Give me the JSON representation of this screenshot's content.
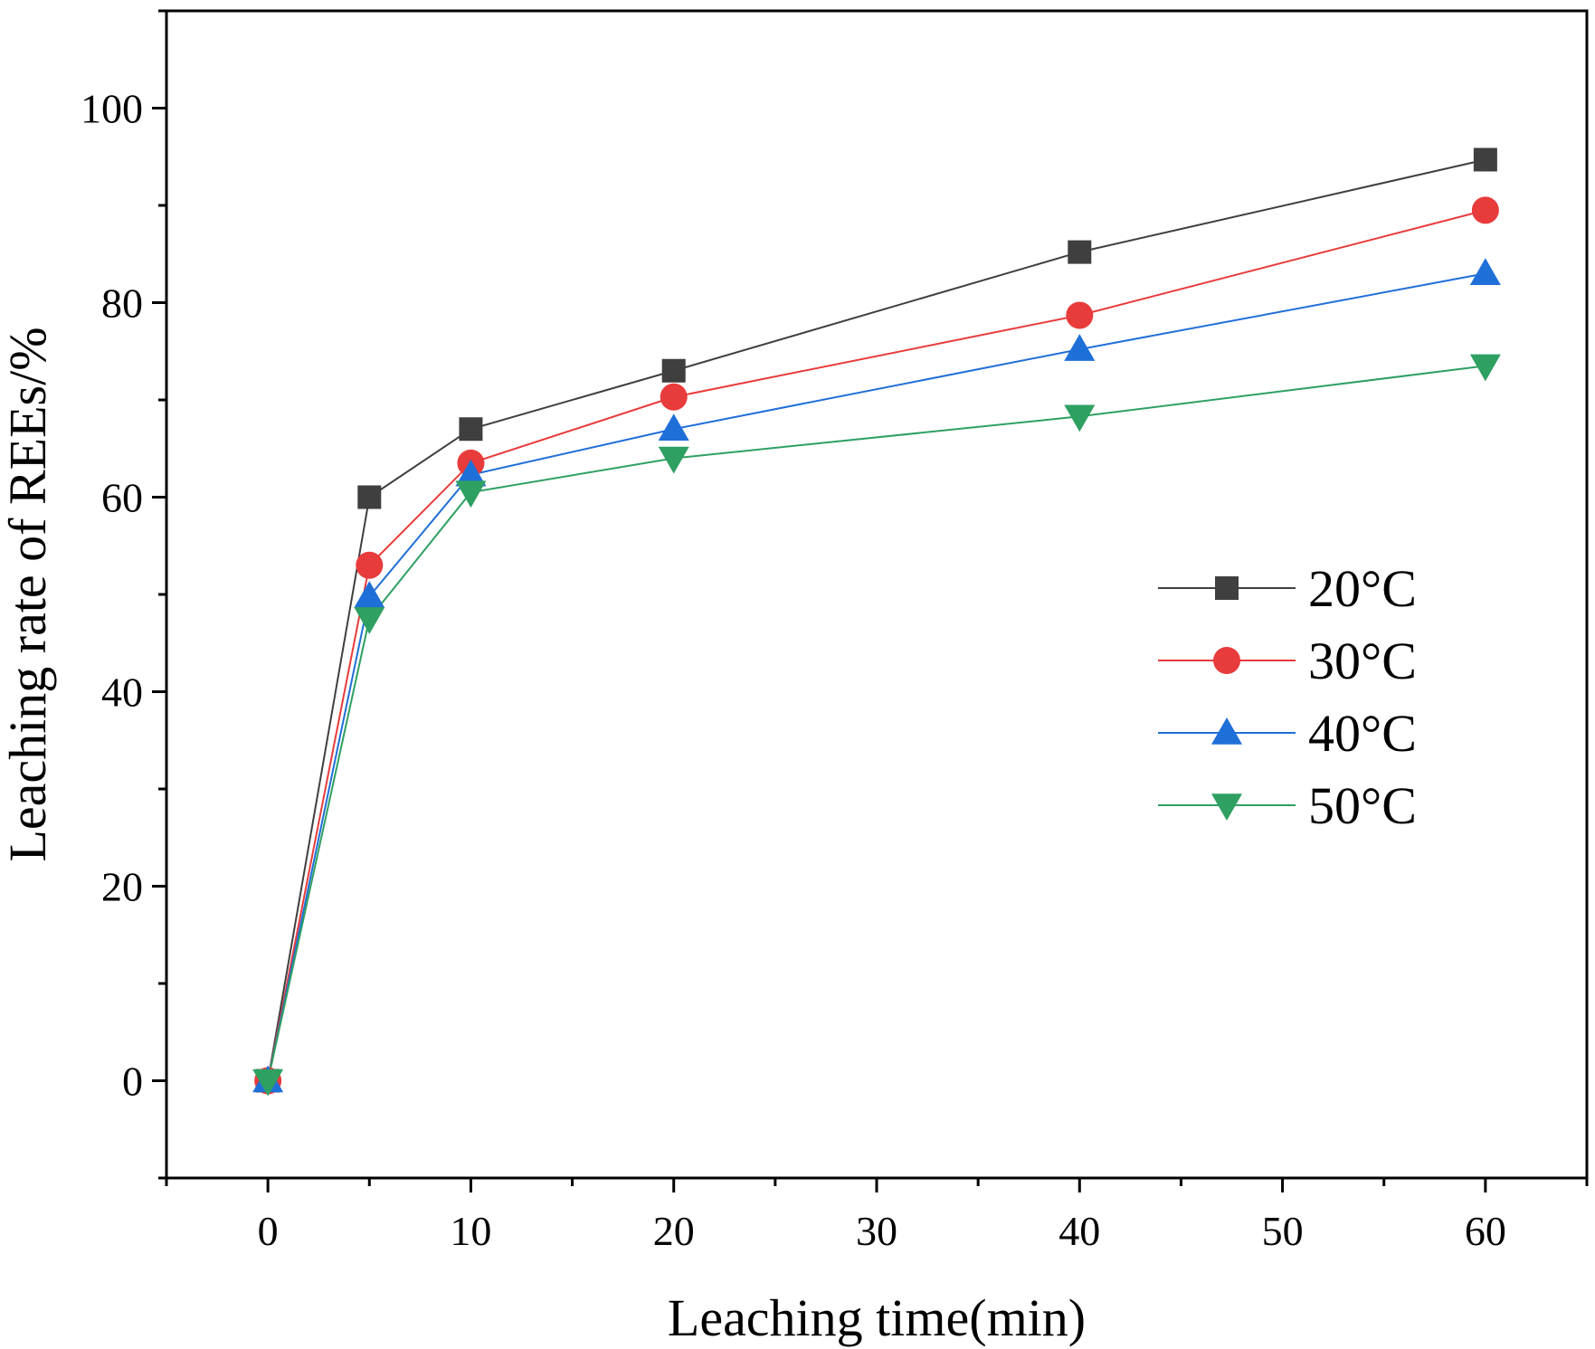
{
  "chart_data": {
    "type": "line",
    "title": "",
    "xlabel": "Leaching time(min)",
    "ylabel": "Leaching rate of REEs/%",
    "xlim": [
      -5,
      65
    ],
    "ylim": [
      -10,
      110
    ],
    "xticks": [
      0,
      10,
      20,
      30,
      40,
      50,
      60
    ],
    "yticks": [
      0,
      20,
      40,
      60,
      80,
      100
    ],
    "x": [
      0,
      5,
      10,
      20,
      40,
      60
    ],
    "legend_position": "center-right",
    "grid": false,
    "series": [
      {
        "name": "20°C",
        "color": "#3f3f3f",
        "marker": "square",
        "values": [
          0,
          60.0,
          67.0,
          73.0,
          85.2,
          94.7
        ]
      },
      {
        "name": "30°C",
        "color": "#e83b3b",
        "marker": "circle",
        "values": [
          0,
          53.0,
          63.5,
          70.3,
          78.7,
          89.5
        ]
      },
      {
        "name": "40°C",
        "color": "#1f6fd8",
        "marker": "triangle-up",
        "values": [
          0,
          49.8,
          62.3,
          67.0,
          75.2,
          83.0
        ]
      },
      {
        "name": "50°C",
        "color": "#2ea062",
        "marker": "triangle-down",
        "values": [
          0,
          47.5,
          60.5,
          64.0,
          68.3,
          73.5
        ]
      }
    ]
  }
}
